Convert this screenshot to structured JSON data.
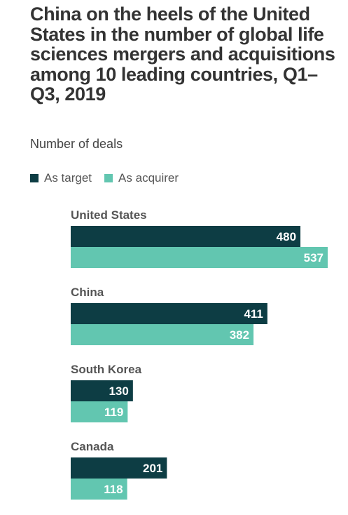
{
  "chart_data": {
    "type": "bar",
    "orientation": "horizontal",
    "title": "China on the heels of the United States in the number of global life sciences mergers and acquisitions among 10 leading countries, Q1–Q3, 2019",
    "subtitle": "Number of deals",
    "categories": [
      "United States",
      "China",
      "South Korea",
      "Canada"
    ],
    "series": [
      {
        "name": "As target",
        "color": "#0d3d44",
        "values": [
          480,
          411,
          130,
          201
        ]
      },
      {
        "name": "As acquirer",
        "color": "#62c6b0",
        "values": [
          537,
          382,
          119,
          118
        ]
      }
    ],
    "xlim": [
      0,
      537
    ],
    "grid": false,
    "legend": "top-left"
  }
}
